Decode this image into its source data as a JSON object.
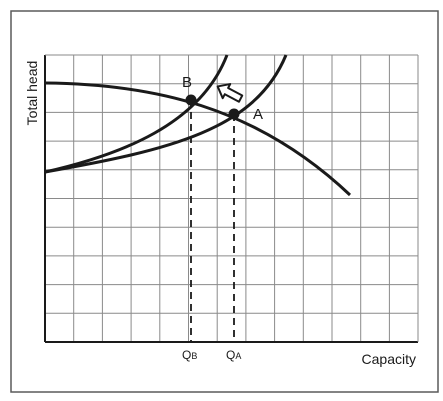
{
  "diagram": {
    "axis_labels": {
      "y": "Total head",
      "x": "Capacity"
    },
    "points": [
      {
        "label": "A",
        "flow_label_main": "Q",
        "flow_label_sub": "A"
      },
      {
        "label": "B",
        "flow_label_main": "Q",
        "flow_label_sub": "B"
      }
    ],
    "curves": [
      {
        "id": "pump-curve",
        "kind": "pump head curve"
      },
      {
        "id": "system-curve-a",
        "kind": "system curve"
      },
      {
        "id": "system-curve-b",
        "kind": "system curve"
      }
    ],
    "arrow": {
      "direction": "up-left",
      "meaning": "shift from A to B"
    },
    "grid": true,
    "colors": {
      "line": "#1a1a1a",
      "grid": "#8a8a8a",
      "frame": "#5a5a5a",
      "background": "#ffffff"
    }
  }
}
